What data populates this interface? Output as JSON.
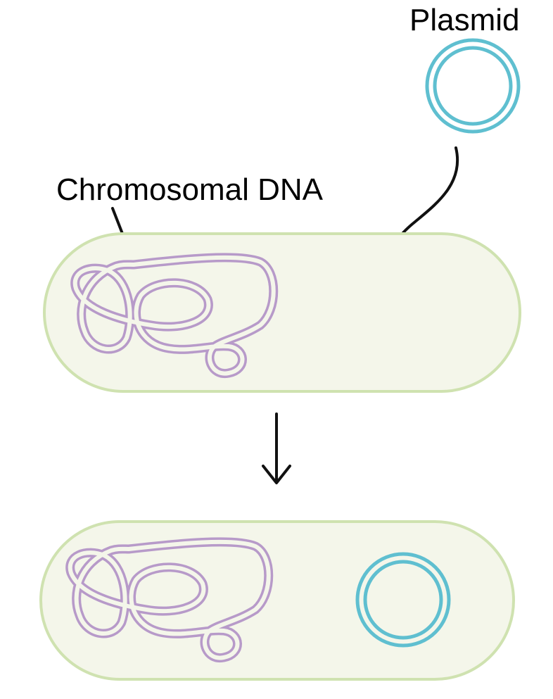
{
  "labels": {
    "plasmid": "Plasmid",
    "chromosomal_dna": "Chromosomal DNA"
  },
  "colors": {
    "cell_fill": "#f4f6ea",
    "cell_stroke": "#cfe2b0",
    "chromosome_stroke": "#b79ac9",
    "plasmid_stroke": "#5fbfd0",
    "arrow_stroke": "#111111"
  },
  "icons": {
    "top_cell": "bacterium-cell-icon",
    "bottom_cell": "bacterium-cell-with-plasmid-icon",
    "plasmid": "plasmid-ring-icon",
    "chromosome": "chromosome-loop-icon"
  }
}
